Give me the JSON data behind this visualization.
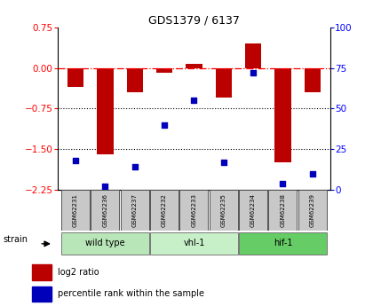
{
  "title": "GDS1379 / 6137",
  "samples": [
    "GSM62231",
    "GSM62236",
    "GSM62237",
    "GSM62232",
    "GSM62233",
    "GSM62235",
    "GSM62234",
    "GSM62238",
    "GSM62239"
  ],
  "log2_ratios": [
    -0.35,
    -1.6,
    -0.45,
    -0.08,
    0.07,
    -0.55,
    0.45,
    -1.75,
    -0.45
  ],
  "percentile_ranks": [
    18,
    2,
    14,
    40,
    55,
    17,
    72,
    4,
    10
  ],
  "groups": [
    {
      "label": "wild type",
      "indices": [
        0,
        1,
        2
      ],
      "color": "#b8e6b8"
    },
    {
      "label": "vhl-1",
      "indices": [
        3,
        4,
        5
      ],
      "color": "#c8f0c8"
    },
    {
      "label": "hif-1",
      "indices": [
        6,
        7,
        8
      ],
      "color": "#66cc66"
    }
  ],
  "ylim_left": [
    -2.25,
    0.75
  ],
  "ylim_right": [
    0,
    100
  ],
  "yticks_left": [
    0.75,
    0.0,
    -0.75,
    -1.5,
    -2.25
  ],
  "yticks_right": [
    100,
    75,
    50,
    25,
    0
  ],
  "bar_color": "#bb0000",
  "dot_color": "#0000bb",
  "dotted_lines": [
    -0.75,
    -1.5
  ],
  "plot_bg": "#ffffff",
  "sample_box_color": "#c8c8c8",
  "legend_bar_label": "log2 ratio",
  "legend_dot_label": "percentile rank within the sample"
}
